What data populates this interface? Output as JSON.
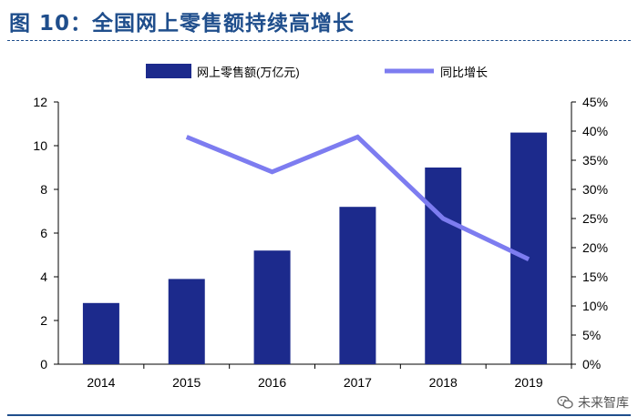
{
  "header": {
    "title": "图 10：全国网上零售额持续高增长"
  },
  "watermark": {
    "text": "未来智库"
  },
  "colors": {
    "bar": "#1c2a8c",
    "line": "#7d7cf0",
    "title": "#1f4e8c"
  },
  "chart_data": {
    "type": "bar",
    "categories": [
      "2014",
      "2015",
      "2016",
      "2017",
      "2018",
      "2019"
    ],
    "series": [
      {
        "name": "网上零售额(万亿元)",
        "type": "bar",
        "axis": "left",
        "values": [
          2.8,
          3.9,
          5.2,
          7.2,
          9.0,
          10.6
        ]
      },
      {
        "name": "同比增长",
        "type": "line",
        "axis": "right",
        "values": [
          null,
          0.39,
          0.33,
          0.39,
          0.25,
          0.18
        ]
      }
    ],
    "ylim": [
      0,
      12
    ],
    "yticks": [
      "0",
      "2",
      "4",
      "6",
      "8",
      "10",
      "12"
    ],
    "y2lim": [
      0,
      0.45
    ],
    "y2ticks": [
      "0%",
      "5%",
      "10%",
      "15%",
      "20%",
      "25%",
      "30%",
      "35%",
      "40%",
      "45%"
    ],
    "legend_position": "top",
    "grid": false
  }
}
